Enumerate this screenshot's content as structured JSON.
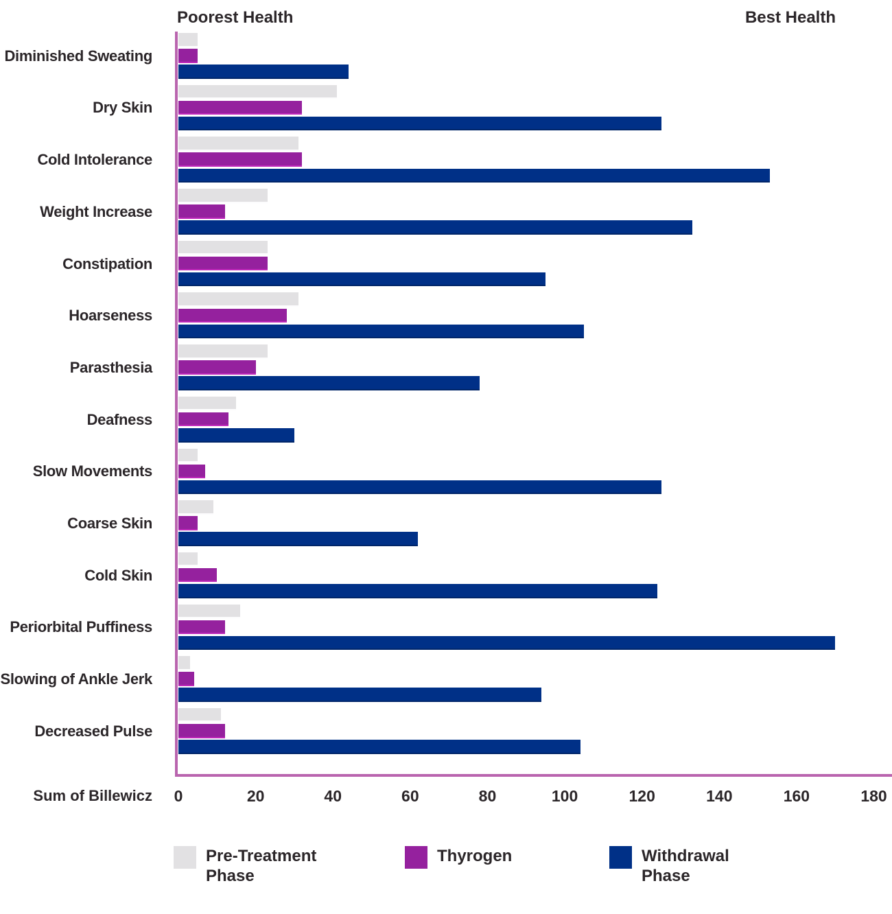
{
  "chart_data": {
    "type": "bar",
    "orientation": "horizontal",
    "title": "",
    "annotations": {
      "left": "Poorest Health",
      "right": "Best Health"
    },
    "xlabel": "Sum of Billewicz",
    "xticks": [
      0,
      20,
      40,
      60,
      80,
      100,
      120,
      140,
      160,
      180
    ],
    "xlim": [
      0,
      184.7
    ],
    "grid": false,
    "legend_position": "bottom",
    "axis_color": "#b964ae",
    "text_color": "#2b2629",
    "categories": [
      "Diminished Sweating",
      "Dry Skin",
      "Cold Intolerance",
      "Weight Increase",
      "Constipation",
      "Hoarseness",
      "Parasthesia",
      "Deafness",
      "Slow Movements",
      "Coarse Skin",
      "Cold Skin",
      "Periorbital Puffiness",
      "Slowing of Ankle Jerk",
      "Decreased Pulse"
    ],
    "series": [
      {
        "name": "Pre-Treatment Phase",
        "color": "#e2e1e3",
        "values": [
          5,
          41,
          31,
          23,
          23,
          31,
          23,
          15,
          5,
          9,
          5,
          16,
          3,
          11
        ]
      },
      {
        "name": "Thyrogen",
        "color": "#95219e",
        "values": [
          5,
          32,
          32,
          12,
          23,
          28,
          20,
          13,
          7,
          5,
          10,
          12,
          4,
          12
        ]
      },
      {
        "name": "Withdrawal Phase",
        "color": "#003087",
        "values": [
          44,
          125,
          153,
          133,
          95,
          105,
          78,
          30,
          125,
          62,
          124,
          170,
          94,
          104
        ]
      }
    ]
  }
}
